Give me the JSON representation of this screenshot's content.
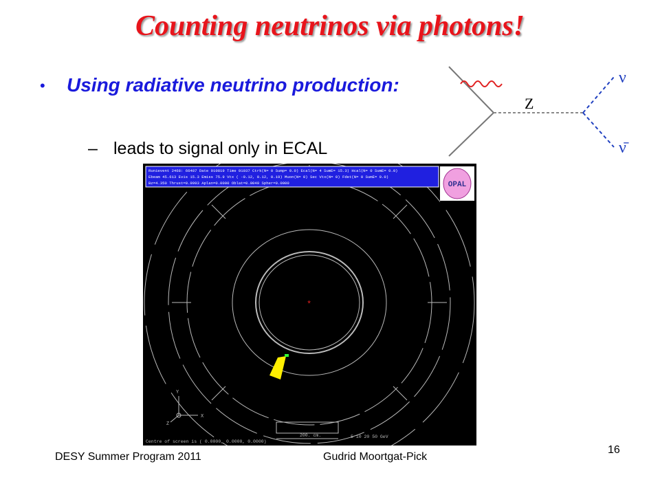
{
  "title": "Counting neutrinos via photons!",
  "bullets": [
    {
      "text": "Using radiative neutrino production:",
      "subitems": [
        {
          "marker": "–",
          "text": "leads to signal only in ECAL"
        }
      ]
    }
  ],
  "diagram": {
    "propagator": "Z",
    "nu": "ν",
    "nubar": "ν̄"
  },
  "event_display": {
    "info_lines": [
      "Runievent 2468: 66487  Date 910819 Time  91037 Ctrk(N=  0 Sump=  0.0) Ecal(N=  4 SumE= 15.3) Hcal(N=  0 SumE=  0.0)",
      "Ebeam 45.613 Evis  15.3 Emiss  75.9 Vtx ( -0.12,   0.12,   0.19) Muon(N=  0) Sec Vtx(N= 0) Fdet(N=  0 SumE=  0.0)",
      "Bz=4.350  Thrust=0.9993 Aplan=0.0000 Oblat=0.0049 Spher=0.0000"
    ],
    "logo": "OPAL",
    "axes": {
      "y": "Y",
      "x": "X",
      "z": "Z"
    },
    "centre": "Centre of screen is (   0.0000,   0.0000,   0.0000)",
    "scale": "200. cm.",
    "energy_scale": "5  10  20    50 GeV"
  },
  "footer": {
    "left": "DESY Summer Program 2011",
    "center": "Gudrid Moortgat-Pick",
    "page": "16"
  }
}
